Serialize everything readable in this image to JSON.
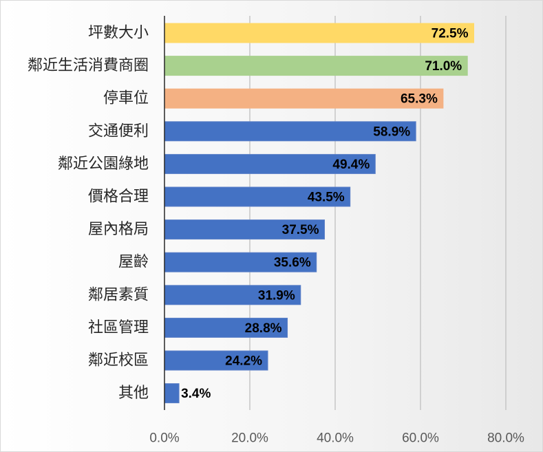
{
  "chart_data": {
    "type": "bar",
    "orientation": "horizontal",
    "categories": [
      "坪數大小",
      "鄰近生活消費商圈",
      "停車位",
      "交通便利",
      "鄰近公園綠地",
      "價格合理",
      "屋內格局",
      "屋齡",
      "鄰居素質",
      "社區管理",
      "鄰近校區",
      "其他"
    ],
    "values": [
      72.5,
      71.0,
      65.3,
      58.9,
      49.4,
      43.5,
      37.5,
      35.6,
      31.9,
      28.8,
      24.2,
      3.4
    ],
    "value_labels": [
      "72.5%",
      "71.0%",
      "65.3%",
      "58.9%",
      "49.4%",
      "43.5%",
      "37.5%",
      "35.6%",
      "31.9%",
      "28.8%",
      "24.2%",
      "3.4%"
    ],
    "bar_colors": [
      "#FFD966",
      "#A9D18E",
      "#F4B183",
      "#4472C4",
      "#4472C4",
      "#4472C4",
      "#4472C4",
      "#4472C4",
      "#4472C4",
      "#4472C4",
      "#4472C4",
      "#4472C4"
    ],
    "bar_border_color": "#5B7FC7",
    "xlim": [
      0,
      80
    ],
    "x_ticks": [
      0,
      20,
      40,
      60,
      80
    ],
    "x_tick_labels": [
      "0.0%",
      "20.0%",
      "40.0%",
      "60.0%",
      "80.0%"
    ],
    "grid": true,
    "gridline_color": "#bfbfbf",
    "axis_line_color": "#262626",
    "title": "",
    "xlabel": "",
    "ylabel": ""
  }
}
